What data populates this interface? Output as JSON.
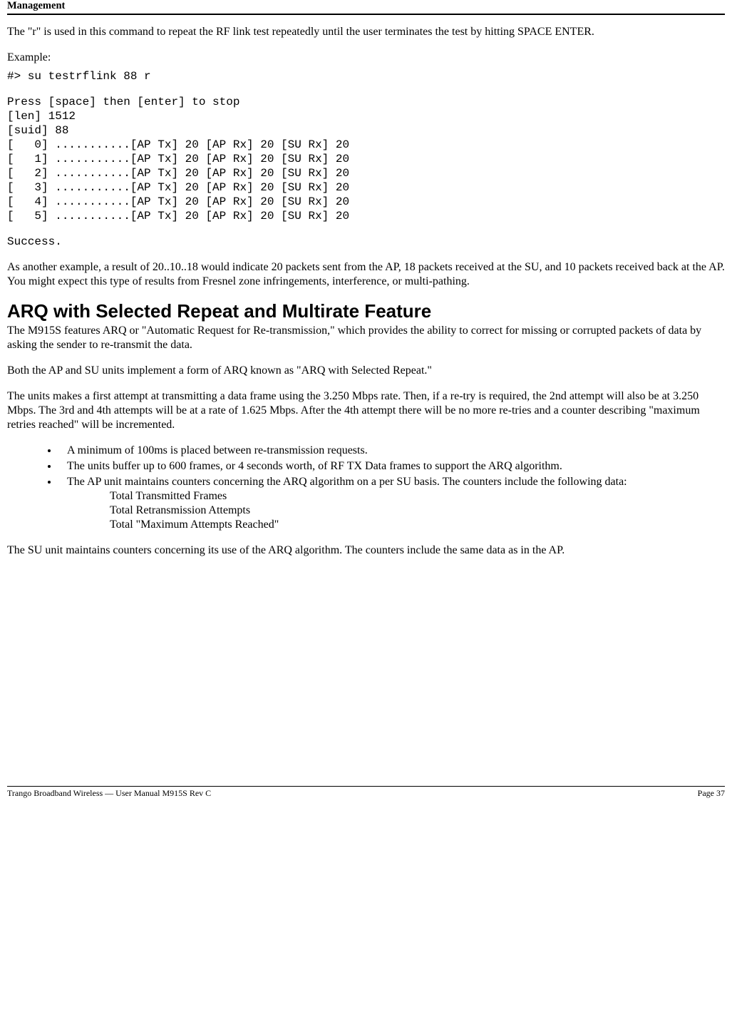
{
  "header": {
    "title": "Management"
  },
  "intro": {
    "p1": "The \"r\" is used in this command to repeat the RF link test repeatedly until the user terminates the test by hitting SPACE ENTER.",
    "example_label": "Example:"
  },
  "terminal": {
    "cmd": "#> su testrflink 88 r",
    "block": "Press [space] then [enter] to stop\n[len] 1512\n[suid] 88\n[   0] ...........[AP Tx] 20 [AP Rx] 20 [SU Rx] 20\n[   1] ...........[AP Tx] 20 [AP Rx] 20 [SU Rx] 20\n[   2] ...........[AP Tx] 20 [AP Rx] 20 [SU Rx] 20\n[   3] ...........[AP Tx] 20 [AP Rx] 20 [SU Rx] 20\n[   4] ...........[AP Tx] 20 [AP Rx] 20 [SU Rx] 20\n[   5] ...........[AP Tx] 20 [AP Rx] 20 [SU Rx] 20",
    "success": "Success."
  },
  "post_example": {
    "p1": "As another example, a result of 20..10..18 would indicate 20 packets sent from the AP, 18 packets received at the SU, and 10 packets received back at the AP.  You might expect this type of results from Fresnel zone infringements, interference, or multi-pathing."
  },
  "arq": {
    "heading": "ARQ with Selected Repeat and Multirate Feature",
    "p1": "The M915S features ARQ or  \"Automatic Request for Re-transmission,\" which provides the ability to correct for missing or corrupted packets of data by asking the sender to re-transmit the data.",
    "p2": "Both the AP and SU units implement a form of ARQ known as \"ARQ with Selected Repeat.\"",
    "p3": "The units makes a first attempt at transmitting a data frame using the 3.250 Mbps rate.  Then, if a re-try is required, the 2nd attempt will also be at 3.250 Mbps.  The 3rd and 4th attempts will be at a rate of 1.625 Mbps.  After the 4th attempt there will be no more re-tries and a counter describing \"maximum retries reached\" will be incremented.",
    "bullets": {
      "b1": "A minimum of 100ms is placed between re-transmission requests.",
      "b2": "The units buffer up to 600 frames, or 4 seconds worth, of RF TX Data frames to support the ARQ algorithm.",
      "b3": "The AP unit maintains counters concerning the ARQ algorithm on a per SU basis.  The counters include the following data:"
    },
    "sub": {
      "s1": "Total Transmitted Frames",
      "s2": "Total Retransmission Attempts",
      "s3": "Total \"Maximum Attempts Reached\""
    },
    "p4": "The SU unit maintains counters concerning its use of the ARQ algorithm.  The counters include the same data as in the AP."
  },
  "footer": {
    "left": "Trango Broadband Wireless — User Manual M915S Rev C",
    "right": "Page 37"
  }
}
